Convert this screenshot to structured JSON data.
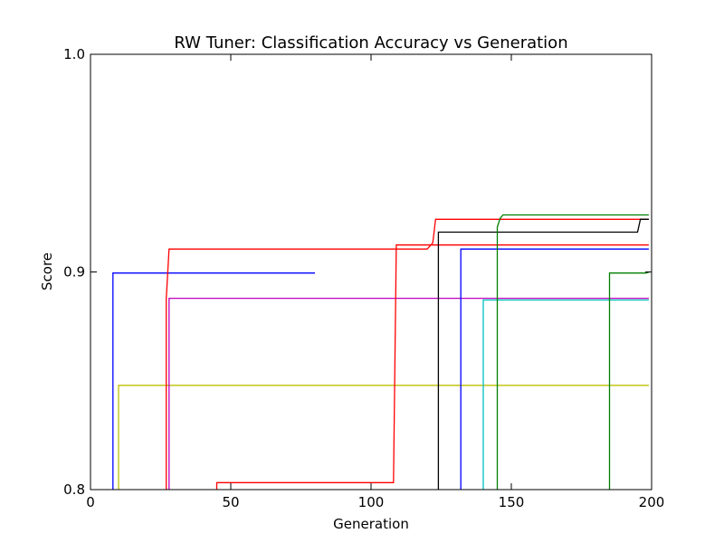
{
  "chart_data": {
    "type": "line",
    "title": "RW Tuner: Classification Accuracy vs Generation",
    "xlabel": "Generation",
    "ylabel": "Score",
    "xlim": [
      0,
      200
    ],
    "ylim": [
      0.8,
      1.0
    ],
    "x_ticks": [
      0,
      50,
      100,
      150,
      200
    ],
    "y_ticks": [
      0.8,
      0.9,
      1.0
    ],
    "x_tick_labels": [
      "0",
      "50",
      "100",
      "150",
      "200"
    ],
    "y_tick_labels": [
      "0.8",
      "0.9",
      "1.0"
    ],
    "grid": false,
    "legend": "none",
    "series": [
      {
        "color": "#0000ff",
        "x": [
          8,
          8,
          80
        ],
        "y": [
          0.8,
          0.8995,
          0.8995
        ]
      },
      {
        "color": "#bfbf00",
        "x": [
          10,
          10,
          199
        ],
        "y": [
          0.8,
          0.8479,
          0.8479
        ]
      },
      {
        "color": "#ff0000",
        "x": [
          27,
          27,
          28,
          120,
          122,
          123,
          199
        ],
        "y": [
          0.8,
          0.8875,
          0.9105,
          0.9105,
          0.9133,
          0.9242,
          0.9242
        ]
      },
      {
        "color": "#bf00bf",
        "x": [
          28,
          28,
          199
        ],
        "y": [
          0.8,
          0.8879,
          0.8879
        ]
      },
      {
        "color": "#ff0000",
        "x": [
          45,
          45,
          108,
          109,
          199
        ],
        "y": [
          0.8,
          0.8032,
          0.8032,
          0.9124,
          0.9124
        ]
      },
      {
        "color": "#000000",
        "x": [
          124,
          124,
          195,
          196,
          199
        ],
        "y": [
          0.8,
          0.9183,
          0.9183,
          0.9242,
          0.9242
        ]
      },
      {
        "color": "#0000ff",
        "x": [
          132,
          132,
          199
        ],
        "y": [
          0.8,
          0.9105,
          0.9105
        ]
      },
      {
        "color": "#00bfbf",
        "x": [
          140,
          140,
          199
        ],
        "y": [
          0.8,
          0.8871,
          0.8871
        ]
      },
      {
        "color": "#008000",
        "x": [
          145,
          145,
          146,
          147,
          199
        ],
        "y": [
          0.8,
          0.9206,
          0.9246,
          0.9262,
          0.9262
        ]
      },
      {
        "color": "#008000",
        "x": [
          185,
          185,
          198,
          199
        ],
        "y": [
          0.8,
          0.8995,
          0.8995,
          0.8999
        ]
      }
    ]
  }
}
